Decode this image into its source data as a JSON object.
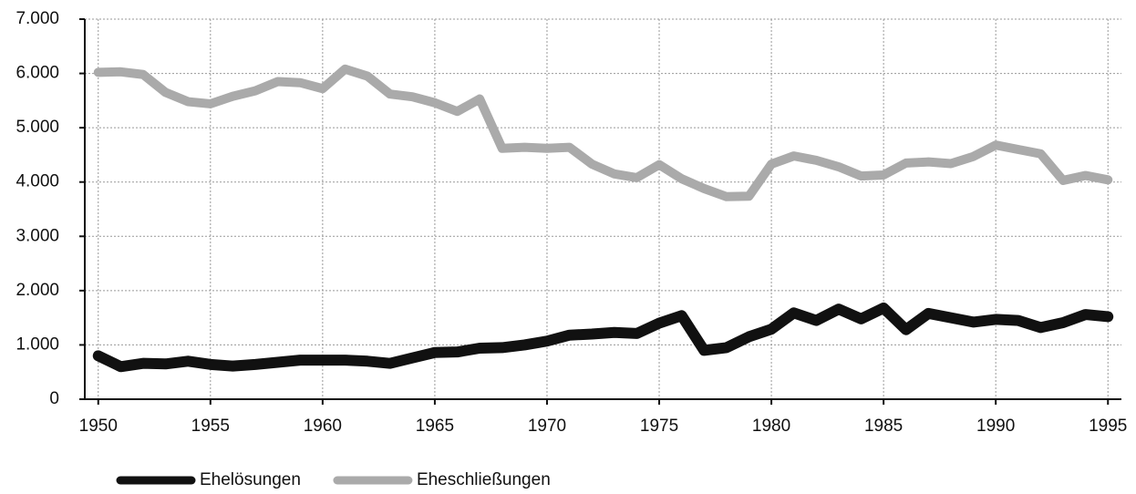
{
  "chart_data": {
    "type": "line",
    "x": [
      1950,
      1951,
      1952,
      1953,
      1954,
      1955,
      1956,
      1957,
      1958,
      1959,
      1960,
      1961,
      1962,
      1963,
      1964,
      1965,
      1966,
      1967,
      1968,
      1969,
      1970,
      1971,
      1972,
      1973,
      1974,
      1975,
      1976,
      1977,
      1978,
      1979,
      1980,
      1981,
      1982,
      1983,
      1984,
      1985,
      1986,
      1987,
      1988,
      1989,
      1990,
      1991,
      1992,
      1993,
      1994,
      1995
    ],
    "series": [
      {
        "name": "Ehelösungen",
        "color": "#111111",
        "values": [
          800,
          600,
          660,
          650,
          700,
          640,
          610,
          640,
          680,
          720,
          720,
          720,
          700,
          660,
          760,
          860,
          870,
          940,
          950,
          1000,
          1070,
          1180,
          1200,
          1230,
          1210,
          1400,
          1540,
          900,
          950,
          1150,
          1290,
          1590,
          1450,
          1660,
          1480,
          1680,
          1280,
          1580,
          1500,
          1420,
          1470,
          1450,
          1320,
          1410,
          1560,
          1520
        ]
      },
      {
        "name": "Eheschließungen",
        "color": "#aaaaaa",
        "values": [
          6020,
          6030,
          5980,
          5650,
          5480,
          5440,
          5580,
          5680,
          5850,
          5830,
          5720,
          6080,
          5950,
          5620,
          5570,
          5460,
          5300,
          5530,
          4620,
          4640,
          4620,
          4640,
          4330,
          4150,
          4080,
          4320,
          4060,
          3880,
          3730,
          3740,
          4330,
          4480,
          4400,
          4280,
          4110,
          4130,
          4350,
          4370,
          4340,
          4470,
          4680,
          4600,
          4520,
          4030,
          4120,
          4040
        ]
      }
    ],
    "xlim": [
      1949.4,
      1995.6
    ],
    "xticks": [
      1950,
      1955,
      1960,
      1965,
      1970,
      1975,
      1980,
      1985,
      1990,
      1995
    ],
    "ylim": [
      0,
      7000
    ],
    "yticks": [
      0,
      {
        "value": 1000,
        "label": "1.000"
      },
      {
        "value": 2000,
        "label": "2.000"
      },
      {
        "value": 3000,
        "label": "3.000"
      },
      {
        "value": 4000,
        "label": "4.000"
      },
      {
        "value": 5000,
        "label": "5.000"
      },
      {
        "value": 6000,
        "label": "6.000"
      },
      {
        "value": 7000,
        "label": "7.000"
      }
    ],
    "grid": true,
    "legend": "bottom-left"
  }
}
